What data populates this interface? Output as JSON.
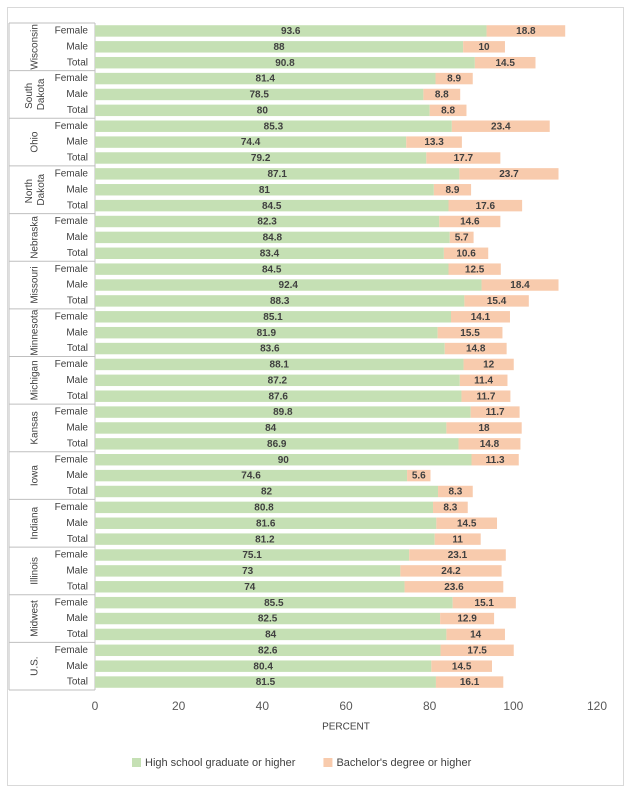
{
  "chart_data": {
    "type": "stacked-barh",
    "groups": [
      "Wisconsin",
      "South Dakota",
      "Ohio",
      "North Dakota",
      "Nebraska",
      "Missouri",
      "Minnesota",
      "Michigan",
      "Kansas",
      "Iowa",
      "Indiana",
      "Illinois",
      "Midwest",
      "U.S."
    ],
    "categories": [
      "Female",
      "Male",
      "Total"
    ],
    "series": [
      {
        "name": "High school graduate or higher",
        "color": "#c5e0b4",
        "values": [
          [
            93.6,
            88,
            90.8
          ],
          [
            81.4,
            78.5,
            80
          ],
          [
            85.3,
            74.4,
            79.2
          ],
          [
            87.1,
            81,
            84.5
          ],
          [
            82.3,
            84.8,
            83.4
          ],
          [
            84.5,
            92.4,
            88.3
          ],
          [
            85.1,
            81.9,
            83.6
          ],
          [
            88.1,
            87.2,
            87.6
          ],
          [
            89.8,
            84,
            86.9
          ],
          [
            90,
            74.6,
            82
          ],
          [
            80.8,
            81.6,
            81.2
          ],
          [
            75.1,
            73,
            74
          ],
          [
            85.5,
            82.5,
            84
          ],
          [
            82.6,
            80.4,
            81.5
          ]
        ]
      },
      {
        "name": "Bachelor's degree or higher",
        "color": "#f8cbad",
        "values": [
          [
            18.8,
            10,
            14.5
          ],
          [
            8.9,
            8.8,
            8.8
          ],
          [
            23.4,
            13.3,
            17.7
          ],
          [
            23.7,
            8.9,
            17.6
          ],
          [
            14.6,
            5.7,
            10.6
          ],
          [
            12.5,
            18.4,
            15.4
          ],
          [
            14.1,
            15.5,
            14.8
          ],
          [
            12,
            11.4,
            11.7
          ],
          [
            11.7,
            18,
            14.8
          ],
          [
            11.3,
            5.6,
            8.3
          ],
          [
            8.3,
            14.5,
            11
          ],
          [
            23.1,
            24.2,
            23.6
          ],
          [
            15.1,
            12.9,
            14
          ],
          [
            17.5,
            14.5,
            16.1
          ]
        ]
      }
    ],
    "xlabel": "PERCENT",
    "xlim": [
      0,
      120
    ],
    "xticks": [
      0,
      20,
      40,
      60,
      80,
      100,
      120
    ],
    "legend": "bottom"
  }
}
